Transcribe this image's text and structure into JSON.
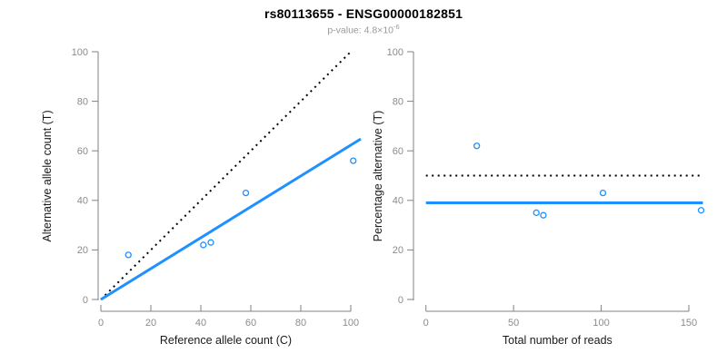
{
  "header": {
    "title": "rs80113655 - ENSG00000182851",
    "subtitle_prefix": "p-value: 4.8×10",
    "subtitle_exponent": "-6"
  },
  "colors": {
    "accent_blue": "#1E90FF",
    "axis_gray": "#828282",
    "tick_label_gray": "#8c8c8c",
    "axis_title_black": "#1a1a1a",
    "identity_black": "#000000",
    "subtitle_gray": "#999999"
  },
  "chart_data": [
    {
      "type": "scatter",
      "panel": "left",
      "xlabel": "Reference allele count (C)",
      "ylabel": "Alternative allele count (T)",
      "xlim": [
        0,
        100
      ],
      "ylim": [
        0,
        100
      ],
      "xticks": [
        0,
        20,
        40,
        60,
        80,
        100
      ],
      "yticks": [
        0,
        20,
        40,
        60,
        80,
        100
      ],
      "grid": false,
      "points": [
        [
          11,
          18
        ],
        [
          41,
          22
        ],
        [
          44,
          23
        ],
        [
          58,
          43
        ],
        [
          101,
          56
        ]
      ],
      "lines": [
        {
          "name": "identity-line",
          "style": "dotted",
          "color": "#000000",
          "x1": 0,
          "y1": 0,
          "x2": 100,
          "y2": 100
        },
        {
          "name": "regression-line",
          "style": "solid",
          "color": "#1E90FF",
          "x1": 0,
          "y1": 0,
          "x2": 104,
          "y2": 64.8
        }
      ]
    },
    {
      "type": "scatter",
      "panel": "right",
      "xlabel": "Total number of reads",
      "ylabel": "Percentage alternative (T)",
      "xlim": [
        0,
        150
      ],
      "ylim": [
        0,
        100
      ],
      "xticks": [
        0,
        50,
        100,
        150
      ],
      "yticks": [
        0,
        20,
        40,
        60,
        80,
        100
      ],
      "grid": false,
      "points": [
        [
          29,
          62
        ],
        [
          63,
          35
        ],
        [
          67,
          34
        ],
        [
          101,
          43
        ],
        [
          157,
          36
        ]
      ],
      "lines": [
        {
          "name": "expected-percentage-line",
          "style": "dotted",
          "color": "#000000",
          "x1": 0,
          "y1": 50,
          "x2": 158,
          "y2": 50
        },
        {
          "name": "mean-percentage-line",
          "style": "solid",
          "color": "#1E90FF",
          "x1": 0,
          "y1": 39,
          "x2": 158,
          "y2": 39
        }
      ]
    }
  ]
}
